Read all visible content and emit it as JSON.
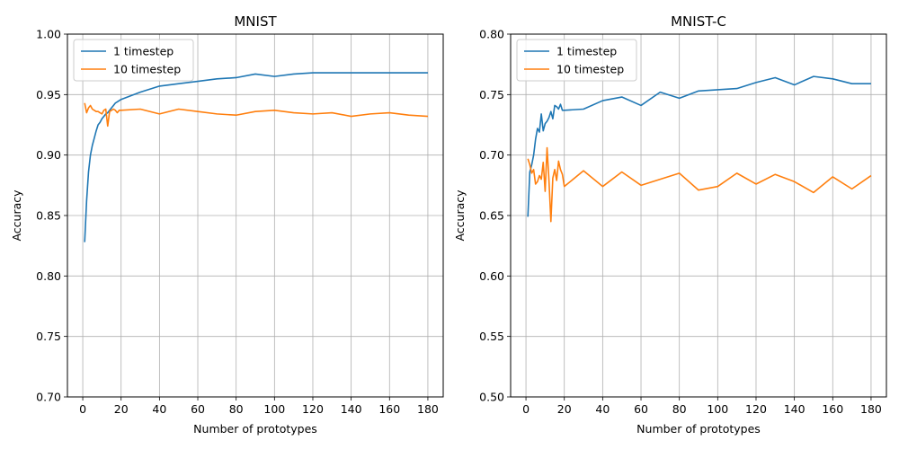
{
  "figure": {
    "colors": {
      "series1": "#1f77b4",
      "series2": "#ff7f0e",
      "grid": "#b0b0b0",
      "axis": "#000000"
    }
  },
  "chart_data": [
    {
      "type": "line",
      "title": "MNIST",
      "xlabel": "Number of prototypes",
      "ylabel": "Accuracy",
      "xlim": [
        -8,
        188
      ],
      "ylim": [
        0.7,
        1.0
      ],
      "xticks": [
        0,
        20,
        40,
        60,
        80,
        100,
        120,
        140,
        160,
        180
      ],
      "yticks": [
        0.7,
        0.75,
        0.8,
        0.85,
        0.9,
        0.95,
        1.0
      ],
      "xtick_labels": [
        "0",
        "20",
        "40",
        "60",
        "80",
        "100",
        "120",
        "140",
        "160",
        "180"
      ],
      "ytick_labels": [
        "0.70",
        "0.75",
        "0.80",
        "0.85",
        "0.90",
        "0.95",
        "1.00"
      ],
      "grid": true,
      "legend_position": "top-left",
      "series": [
        {
          "name": "1 timestep",
          "color": "#1f77b4",
          "x": [
            1,
            2,
            3,
            4,
            5,
            6,
            7,
            8,
            9,
            10,
            11,
            12,
            13,
            14,
            15,
            16,
            17,
            18,
            19,
            20,
            30,
            40,
            50,
            60,
            70,
            80,
            90,
            100,
            110,
            120,
            130,
            140,
            150,
            160,
            170,
            180
          ],
          "y": [
            0.828,
            0.862,
            0.886,
            0.9,
            0.908,
            0.914,
            0.92,
            0.925,
            0.927,
            0.93,
            0.932,
            0.934,
            0.935,
            0.937,
            0.939,
            0.941,
            0.943,
            0.944,
            0.945,
            0.946,
            0.952,
            0.957,
            0.959,
            0.961,
            0.963,
            0.964,
            0.967,
            0.965,
            0.967,
            0.968,
            0.968,
            0.968,
            0.968,
            0.968,
            0.968,
            0.968
          ]
        },
        {
          "name": "10 timestep",
          "color": "#ff7f0e",
          "x": [
            1,
            2,
            3,
            4,
            5,
            6,
            7,
            8,
            9,
            10,
            11,
            12,
            13,
            14,
            15,
            16,
            17,
            18,
            19,
            20,
            30,
            40,
            50,
            60,
            70,
            80,
            90,
            100,
            110,
            120,
            130,
            140,
            150,
            160,
            170,
            180
          ],
          "y": [
            0.943,
            0.935,
            0.939,
            0.941,
            0.938,
            0.937,
            0.936,
            0.936,
            0.935,
            0.934,
            0.937,
            0.938,
            0.924,
            0.936,
            0.937,
            0.938,
            0.937,
            0.935,
            0.937,
            0.937,
            0.938,
            0.934,
            0.938,
            0.936,
            0.934,
            0.933,
            0.936,
            0.937,
            0.935,
            0.934,
            0.935,
            0.932,
            0.934,
            0.935,
            0.933,
            0.932
          ]
        }
      ]
    },
    {
      "type": "line",
      "title": "MNIST-C",
      "xlabel": "Number of prototypes",
      "ylabel": "Accuracy",
      "xlim": [
        -8,
        188
      ],
      "ylim": [
        0.5,
        0.8
      ],
      "xticks": [
        0,
        20,
        40,
        60,
        80,
        100,
        120,
        140,
        160,
        180
      ],
      "yticks": [
        0.5,
        0.55,
        0.6,
        0.65,
        0.7,
        0.75,
        0.8
      ],
      "xtick_labels": [
        "0",
        "20",
        "40",
        "60",
        "80",
        "100",
        "120",
        "140",
        "160",
        "180"
      ],
      "ytick_labels": [
        "0.50",
        "0.55",
        "0.60",
        "0.65",
        "0.70",
        "0.75",
        "0.80"
      ],
      "grid": true,
      "legend_position": "top-left",
      "series": [
        {
          "name": "1 timestep",
          "color": "#1f77b4",
          "x": [
            1,
            2,
            3,
            4,
            5,
            6,
            7,
            8,
            9,
            10,
            11,
            12,
            13,
            14,
            15,
            16,
            17,
            18,
            19,
            20,
            30,
            40,
            50,
            60,
            70,
            80,
            90,
            100,
            110,
            120,
            130,
            140,
            150,
            160,
            170,
            180
          ],
          "y": [
            0.649,
            0.686,
            0.692,
            0.7,
            0.713,
            0.722,
            0.719,
            0.734,
            0.72,
            0.726,
            0.728,
            0.731,
            0.736,
            0.73,
            0.741,
            0.74,
            0.738,
            0.742,
            0.737,
            0.737,
            0.738,
            0.745,
            0.748,
            0.741,
            0.752,
            0.747,
            0.753,
            0.754,
            0.755,
            0.76,
            0.764,
            0.758,
            0.765,
            0.763,
            0.759,
            0.759
          ]
        },
        {
          "name": "10 timestep",
          "color": "#ff7f0e",
          "x": [
            1,
            2,
            3,
            4,
            5,
            6,
            7,
            8,
            9,
            10,
            11,
            12,
            13,
            14,
            15,
            16,
            17,
            18,
            19,
            20,
            30,
            40,
            50,
            60,
            70,
            80,
            90,
            100,
            110,
            120,
            130,
            140,
            150,
            160,
            170,
            180
          ],
          "y": [
            0.697,
            0.692,
            0.685,
            0.688,
            0.676,
            0.678,
            0.683,
            0.68,
            0.694,
            0.67,
            0.706,
            0.679,
            0.645,
            0.681,
            0.688,
            0.679,
            0.695,
            0.688,
            0.684,
            0.674,
            0.687,
            0.674,
            0.686,
            0.675,
            0.68,
            0.685,
            0.671,
            0.674,
            0.685,
            0.676,
            0.684,
            0.678,
            0.669,
            0.682,
            0.672,
            0.683
          ]
        }
      ]
    }
  ]
}
